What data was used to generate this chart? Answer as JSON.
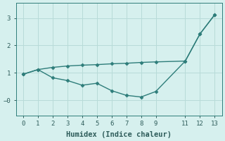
{
  "xlabel": "Humidex (Indice chaleur)",
  "line1_x": [
    0,
    1,
    2,
    3,
    4,
    5,
    6,
    7,
    8,
    9,
    11,
    12,
    13
  ],
  "line1_y": [
    0.95,
    1.12,
    1.2,
    1.25,
    1.28,
    1.3,
    1.33,
    1.35,
    1.38,
    1.4,
    1.43,
    2.42,
    3.12
  ],
  "line2_x": [
    0,
    1,
    2,
    3,
    4,
    5,
    6,
    7,
    8,
    9,
    11,
    12,
    13
  ],
  "line2_y": [
    0.95,
    1.12,
    0.82,
    0.72,
    0.55,
    0.62,
    0.35,
    0.18,
    0.12,
    0.32,
    1.43,
    2.42,
    3.12
  ],
  "line_color": "#2e7d7a",
  "bg_color": "#d6f0ee",
  "grid_color": "#b8dbd8",
  "ylim": [
    -0.55,
    3.55
  ],
  "xlim": [
    -0.5,
    13.5
  ],
  "yticks": [
    0,
    1,
    2,
    3
  ],
  "xticks": [
    0,
    1,
    2,
    3,
    4,
    5,
    6,
    7,
    8,
    9,
    11,
    12,
    13
  ],
  "marker": "D",
  "markersize": 2.5,
  "linewidth": 1.0
}
